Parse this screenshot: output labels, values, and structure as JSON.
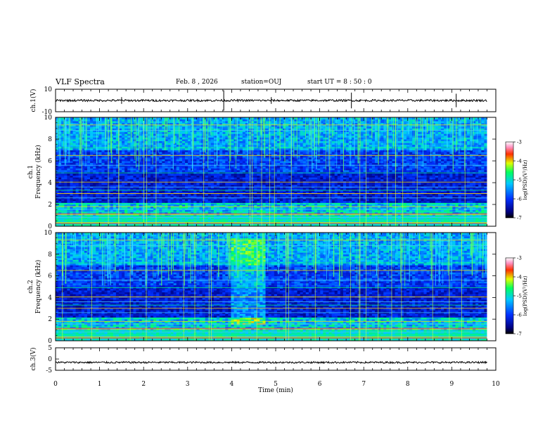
{
  "header": {
    "title": "VLF Spectra",
    "date": "Feb. 8 , 2026",
    "station": "station=OUJ",
    "start_ut": "start UT =  8 : 50 : 0"
  },
  "chart_data": [
    {
      "type": "line",
      "panel": "waveform-ch1",
      "ylabel": "ch.1(V)",
      "ylim": [
        -10,
        10
      ],
      "ytick_labels": [
        "10",
        "-10"
      ],
      "baseline": 0,
      "x_range": [
        0,
        9.8
      ]
    },
    {
      "type": "heatmap",
      "panel": "spectrogram-ch1",
      "ylabel_channel": "ch.1",
      "ylabel": "Frequency (kHz)",
      "ylim": [
        0,
        10
      ],
      "ytick_labels": [
        "0",
        "2",
        "4",
        "6",
        "8",
        "10"
      ],
      "colorbar": {
        "label": "log(PSD)(V²/Hz)",
        "range": [
          -7,
          -3
        ],
        "tick_labels": [
          "-3",
          "-4",
          "-5",
          "-6",
          "-7"
        ]
      }
    },
    {
      "type": "heatmap",
      "panel": "spectrogram-ch2",
      "ylabel_channel": "ch.2",
      "ylabel": "Frequency (kHz)",
      "ylim": [
        0,
        10
      ],
      "ytick_labels": [
        "0",
        "2",
        "4",
        "6",
        "8",
        "10"
      ],
      "colorbar": {
        "label": "log(PSD)(V²/Hz)",
        "range": [
          -7,
          -3
        ],
        "tick_labels": [
          "-3",
          "-4",
          "-5",
          "-6",
          "-7"
        ]
      }
    },
    {
      "type": "line",
      "panel": "waveform-ch3",
      "ylabel": "ch.3(V)",
      "ylim": [
        -5,
        5
      ],
      "ytick_labels": [
        "5",
        "0",
        "-5"
      ],
      "baseline": -1.5,
      "x_range": [
        0,
        9.8
      ]
    },
    {
      "type": "axis",
      "panel": "time-axis",
      "xlabel": "Time (min)",
      "xlim": [
        0,
        10
      ],
      "xtick_labels": [
        "0",
        "1",
        "2",
        "3",
        "4",
        "5",
        "6",
        "7",
        "8",
        "9",
        "10"
      ]
    }
  ]
}
